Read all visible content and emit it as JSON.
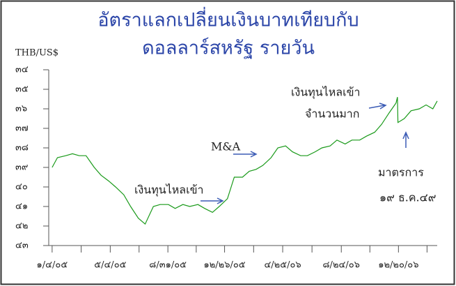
{
  "chart_data": {
    "type": "line",
    "title_lines": [
      "อัตราแลกเปลี่ยนเงินบาทเทียบกับ",
      "ดอลลาร์สหรัฐ รายวัน"
    ],
    "y_label": "THB/US$",
    "annotations": [
      "เงินทุนไหลเข้า",
      "M&A",
      "เงินทุนไหลเข้า",
      "จำนวนมาก",
      "มาตรการ",
      "๑๙ ธ.ค.๔๙"
    ],
    "x": [
      "2005-01-04",
      "2005-01-15",
      "2005-02-01",
      "2005-02-15",
      "2005-03-01",
      "2005-03-15",
      "2005-04-01",
      "2005-04-15",
      "2005-05-01",
      "2005-05-15",
      "2005-06-01",
      "2005-06-15",
      "2005-07-01",
      "2005-07-15",
      "2005-08-01",
      "2005-08-15",
      "2005-09-01",
      "2005-09-15",
      "2005-10-01",
      "2005-10-15",
      "2005-11-01",
      "2005-11-15",
      "2005-12-01",
      "2005-12-15",
      "2006-01-01",
      "2006-01-15",
      "2006-02-01",
      "2006-02-15",
      "2006-03-01",
      "2006-03-15",
      "2006-04-01",
      "2006-04-15",
      "2006-05-01",
      "2006-05-15",
      "2006-06-01",
      "2006-06-15",
      "2006-07-01",
      "2006-07-15",
      "2006-08-01",
      "2006-08-15",
      "2006-09-01",
      "2006-09-15",
      "2006-10-01",
      "2006-10-15",
      "2006-11-01",
      "2006-11-15",
      "2006-12-01",
      "2006-12-15",
      "2006-12-18",
      "2006-12-19",
      "2007-01-01",
      "2007-01-15",
      "2007-02-01",
      "2007-02-15",
      "2007-03-01",
      "2007-03-10"
    ],
    "series": [
      {
        "name": "THB/US$",
        "color": "#1a9a1a",
        "values": [
          39.0,
          38.5,
          38.4,
          38.3,
          38.4,
          38.4,
          39.0,
          39.4,
          39.7,
          40.0,
          40.4,
          41.0,
          41.6,
          41.9,
          41.0,
          40.9,
          40.9,
          41.1,
          40.9,
          41.0,
          40.9,
          41.1,
          41.3,
          41.0,
          40.6,
          39.5,
          39.5,
          39.2,
          39.1,
          38.9,
          38.5,
          38.0,
          37.9,
          38.2,
          38.4,
          38.4,
          38.2,
          38.0,
          37.9,
          37.6,
          37.8,
          37.6,
          37.6,
          37.4,
          37.2,
          36.8,
          36.2,
          35.7,
          35.4,
          36.7,
          36.5,
          36.1,
          36.0,
          35.8,
          36.0,
          35.6
        ]
      }
    ],
    "xlim": [
      "2004-12-28",
      "2007-03-10"
    ],
    "xticks": [
      {
        "value": "2005-01-04",
        "label": "๑/๔/๐๕"
      },
      {
        "value": "2005-05-04",
        "label": "๕/๔/๐๕"
      },
      {
        "value": "2005-08-31",
        "label": "๘/๓๑/๐๕"
      },
      {
        "value": "2005-12-26",
        "label": "๑๒/๒๖/๐๕"
      },
      {
        "value": "2006-04-25",
        "label": "๔/๒๕/๐๖"
      },
      {
        "value": "2006-08-24",
        "label": "๘/๒๔/๐๖"
      },
      {
        "value": "2006-12-20",
        "label": "๑๒/๒๐/๐๖"
      }
    ],
    "ylim": [
      34,
      43
    ],
    "y_inverted": true,
    "yticks": [
      {
        "value": 34,
        "label": "๓๔"
      },
      {
        "value": 35,
        "label": "๓๕"
      },
      {
        "value": 36,
        "label": "๓๖"
      },
      {
        "value": 37,
        "label": "๓๗"
      },
      {
        "value": 38,
        "label": "๓๘"
      },
      {
        "value": 39,
        "label": "๓๙"
      },
      {
        "value": 40,
        "label": "๔๐"
      },
      {
        "value": 41,
        "label": "๔๑"
      },
      {
        "value": 42,
        "label": "๔๒"
      },
      {
        "value": 43,
        "label": "๔๓"
      }
    ]
  }
}
